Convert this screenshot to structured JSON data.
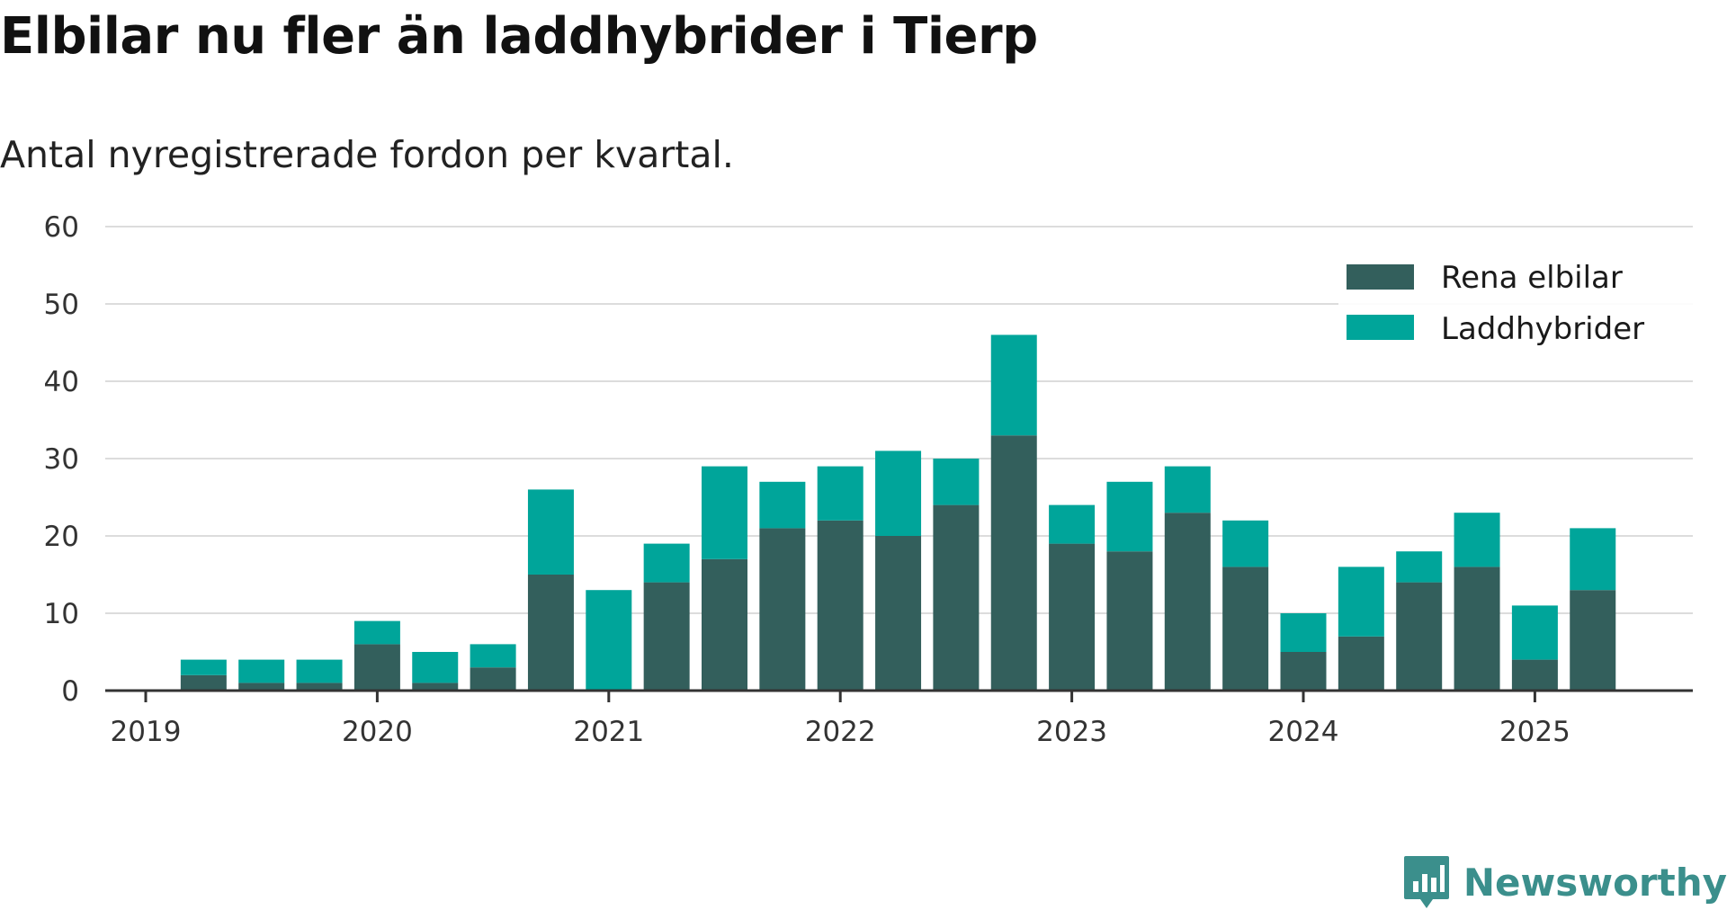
{
  "chart_data": {
    "type": "bar",
    "stacked": true,
    "title": "Elbilar nu fler än laddhybrider i Tierp",
    "subtitle": "Antal nyregistrerade fordon per kvartal.",
    "xlabel": "",
    "ylabel": "",
    "ylim": [
      0,
      60
    ],
    "yticks": [
      0,
      10,
      20,
      30,
      40,
      50,
      60
    ],
    "x_ticks": [
      "2019",
      "2020",
      "2021",
      "2022",
      "2023",
      "2024",
      "2025"
    ],
    "categories": [
      "2019 Q2",
      "2019 Q3",
      "2019 Q4",
      "2020 Q1",
      "2020 Q2",
      "2020 Q3",
      "2020 Q4",
      "2021 Q1",
      "2021 Q2",
      "2021 Q3",
      "2021 Q4",
      "2022 Q1",
      "2022 Q2",
      "2022 Q3",
      "2022 Q4",
      "2023 Q1",
      "2023 Q2",
      "2023 Q3",
      "2023 Q4",
      "2024 Q1",
      "2024 Q2",
      "2024 Q3",
      "2024 Q4",
      "2025 Q1",
      "2025 Q2"
    ],
    "series": [
      {
        "name": "Rena elbilar",
        "color": "#335f5c",
        "values": [
          2,
          1,
          1,
          6,
          1,
          3,
          15,
          0,
          14,
          17,
          21,
          22,
          20,
          24,
          33,
          19,
          18,
          23,
          16,
          5,
          7,
          14,
          16,
          4,
          13
        ]
      },
      {
        "name": "Laddhybrider",
        "color": "#00a59a",
        "values": [
          2,
          3,
          3,
          3,
          4,
          3,
          11,
          13,
          5,
          12,
          6,
          7,
          11,
          6,
          13,
          5,
          9,
          6,
          6,
          5,
          9,
          4,
          7,
          7,
          8
        ]
      }
    ],
    "grid": true,
    "legend_position": "top-right"
  },
  "brand": {
    "name": "Newsworthy",
    "icon": "newsworthy-logo-icon",
    "color": "#3b8f8c"
  }
}
